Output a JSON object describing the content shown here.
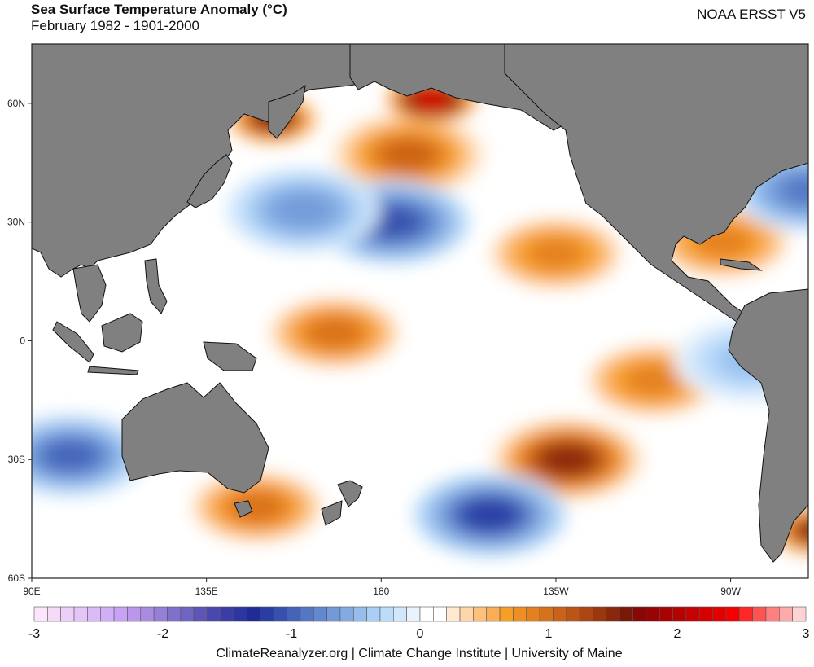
{
  "header": {
    "title": "Sea Surface Temperature Anomaly (°C)",
    "subtitle": "February 1982 - 1901-2000",
    "source": "NOAA ERSST V5"
  },
  "footer": {
    "credit": "ClimateReanalyzer.org | Climate Change Institute | University of Maine"
  },
  "chart_data": {
    "type": "heatmap",
    "title": "Sea Surface Temperature Anomaly (°C)",
    "subtitle": "February 1982 - 1901-2000",
    "dataset": "NOAA ERSST V5",
    "projection": "equirectangular",
    "lon_range": [
      90,
      290
    ],
    "lat_range": [
      -60,
      75
    ],
    "x_ticks": [
      {
        "lon": 90,
        "label": "90E"
      },
      {
        "lon": 135,
        "label": "135E"
      },
      {
        "lon": 180,
        "label": "180"
      },
      {
        "lon": 225,
        "label": "135W"
      },
      {
        "lon": 270,
        "label": "90W"
      }
    ],
    "y_ticks": [
      {
        "lat": 60,
        "label": "60N"
      },
      {
        "lat": 30,
        "label": "30N"
      },
      {
        "lat": 0,
        "label": "0"
      },
      {
        "lat": -30,
        "label": "30S"
      },
      {
        "lat": -60,
        "label": "60S"
      }
    ],
    "colorbar": {
      "min": -3.0,
      "max": 3.0,
      "ticks": [
        -3,
        -2,
        -1,
        0,
        1,
        2,
        3
      ],
      "tick_labels": [
        "-3",
        "-2",
        "-1",
        "0",
        "1",
        "2",
        "3"
      ],
      "colors": [
        "#fde6fb",
        "#f6dbf9",
        "#eccff9",
        "#e3c5f7",
        "#dbbbf7",
        "#d1aff7",
        "#c8a3f5",
        "#bb97ec",
        "#a98ce2",
        "#9580d7",
        "#7f71cb",
        "#6e64c1",
        "#5d55b7",
        "#4b48ad",
        "#3a3da6",
        "#2b36a0",
        "#1f2c98",
        "#2a3da3",
        "#3750ad",
        "#4564b9",
        "#5377c4",
        "#6289cf",
        "#729ad9",
        "#83abe2",
        "#96bdec",
        "#a9cff7",
        "#bcdcfa",
        "#d2e7fb",
        "#e8f3fd",
        "#ffffff",
        "#ffffff",
        "#ffe9d1",
        "#fed6a8",
        "#fdc07d",
        "#fbad55",
        "#f79e26",
        "#ef8f21",
        "#e48020",
        "#d8711c",
        "#ca6219",
        "#bc5415",
        "#ac4612",
        "#9b370f",
        "#8a280c",
        "#7a1808",
        "#880707",
        "#980404",
        "#a80303",
        "#b80202",
        "#c70101",
        "#d60000",
        "#e40000",
        "#f30000",
        "#fd2828",
        "#fe5353",
        "#fe8080",
        "#ffaaaa",
        "#ffd3d3"
      ]
    },
    "anomaly_features": [
      {
        "name": "NE Pacific warm (Gulf of Alaska south)",
        "lon": 187,
        "lat": 47,
        "value": 1.1
      },
      {
        "name": "Gulf of Alaska coastal max",
        "lon": 193,
        "lat": 61,
        "value": 2.3
      },
      {
        "name": "Sea of Okhotsk warm",
        "lon": 152,
        "lat": 56,
        "value": 1.7
      },
      {
        "name": "North Pacific cold (Kuroshio ext.)",
        "lon": 183,
        "lat": 30,
        "value": -1.1
      },
      {
        "name": "NW Pacific cold",
        "lon": 160,
        "lat": 33,
        "value": -0.7
      },
      {
        "name": "Central subtropical warm",
        "lon": 225,
        "lat": 22,
        "value": 0.9
      },
      {
        "name": "Equatorial west-central warm",
        "lon": 168,
        "lat": 2,
        "value": 1.0
      },
      {
        "name": "Eastern tropical warm",
        "lon": 250,
        "lat": -10,
        "value": 0.9
      },
      {
        "name": "Peru coastal cold",
        "lon": 275,
        "lat": -5,
        "value": -0.5
      },
      {
        "name": "South Pacific warm max",
        "lon": 228,
        "lat": -30,
        "value": 1.5
      },
      {
        "name": "South Pacific cold",
        "lon": 208,
        "lat": -44,
        "value": -1.2
      },
      {
        "name": "Indian Ocean SE cold",
        "lon": 100,
        "lat": -29,
        "value": -1.0
      },
      {
        "name": "Tasman / SE Australia warm",
        "lon": 148,
        "lat": -42,
        "value": 1.0
      },
      {
        "name": "Patagonia shelf warm",
        "lon": 292,
        "lat": -48,
        "value": 1.6
      },
      {
        "name": "Gulf of Mexico warm",
        "lon": 268,
        "lat": 25,
        "value": 0.9
      },
      {
        "name": "NW Atlantic cold",
        "lon": 290,
        "lat": 38,
        "value": -0.9
      }
    ]
  }
}
